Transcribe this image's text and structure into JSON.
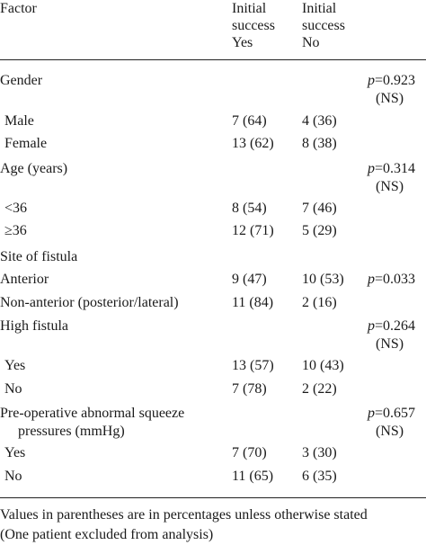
{
  "header": {
    "factor": "Factor",
    "col1": [
      "Initial",
      "success",
      "Yes"
    ],
    "col2": [
      "Initial",
      "success",
      "No"
    ]
  },
  "rows": [
    {
      "label": "Gender",
      "indent": false,
      "yes": "",
      "no": "",
      "p": [
        "=0.923",
        "(NS)"
      ]
    },
    {
      "label": "Male",
      "indent": true,
      "yes": "7 (64)",
      "no": "4 (36)",
      "p": []
    },
    {
      "label": "Female",
      "indent": true,
      "yes": "13 (62)",
      "no": "8 (38)",
      "p": []
    },
    {
      "label": "Age (years)",
      "indent": false,
      "yes": "",
      "no": "",
      "p": [
        "=0.314",
        "(NS)"
      ]
    },
    {
      "label": "<36",
      "indent": true,
      "yes": "8 (54)",
      "no": "7 (46)",
      "p": []
    },
    {
      "label": "≥36",
      "indent": true,
      "yes": "12 (71)",
      "no": "5 (29)",
      "p": []
    },
    {
      "label": "Site of fistula",
      "indent": false,
      "yes": "",
      "no": "",
      "p": []
    },
    {
      "label": "Anterior",
      "indent": false,
      "yes": "9 (47)",
      "no": "10 (53)",
      "p": [
        "=0.033"
      ]
    },
    {
      "label": "Non-anterior (posterior/lateral)",
      "indent": false,
      "yes": "11 (84)",
      "no": "2 (16)",
      "p": []
    },
    {
      "label": "High fistula",
      "indent": false,
      "yes": "",
      "no": "",
      "p": [
        "=0.264",
        "(NS)"
      ]
    },
    {
      "label": "Yes",
      "indent": true,
      "yes": "13 (57)",
      "no": "10 (43)",
      "p": []
    },
    {
      "label": "No",
      "indent": true,
      "yes": "7 (78)",
      "no": "2 (22)",
      "p": []
    },
    {
      "label": [
        "Pre-operative abnormal squeeze",
        "pressures (mmHg)"
      ],
      "indent": false,
      "yes": "",
      "no": "",
      "p": [
        "=0.657",
        "(NS)"
      ]
    },
    {
      "label": "Yes",
      "indent": true,
      "yes": "7 (70)",
      "no": "3 (30)",
      "p": []
    },
    {
      "label": "No",
      "indent": true,
      "yes": "11 (65)",
      "no": "6 (35)",
      "p": []
    }
  ],
  "p_symbol": "p",
  "footnotes": [
    "Values in parentheses are in percentages unless otherwise stated",
    "(One patient excluded from analysis)"
  ]
}
